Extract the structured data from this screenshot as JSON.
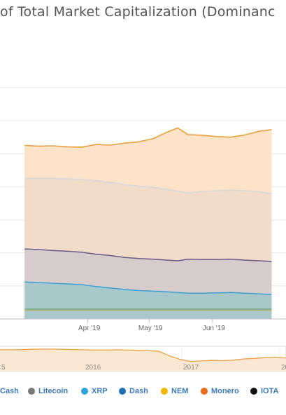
{
  "chart_data": {
    "type": "area",
    "stacked": true,
    "title": "of Total Market Capitalization (Dominanc",
    "x_axis": {
      "tick_labels": [
        "Apr '19",
        "May '19",
        "Jun '19"
      ],
      "tick_dates": [
        "2019-04-01",
        "2019-05-01",
        "2019-06-01"
      ]
    },
    "x": [
      "2019-03-01",
      "2019-03-08",
      "2019-03-15",
      "2019-03-22",
      "2019-03-29",
      "2019-04-05",
      "2019-04-12",
      "2019-04-19",
      "2019-04-26",
      "2019-05-03",
      "2019-05-10",
      "2019-05-15",
      "2019-05-20",
      "2019-05-27",
      "2019-06-03",
      "2019-06-10",
      "2019-06-17",
      "2019-06-24",
      "2019-06-30"
    ],
    "series": [
      {
        "name": "Litecoin",
        "color": "#777777",
        "values": [
          0.6,
          0.6,
          0.6,
          0.6,
          0.6,
          0.6,
          0.6,
          0.6,
          0.6,
          0.6,
          0.6,
          0.6,
          0.6,
          0.6,
          0.6,
          0.6,
          0.6,
          0.6,
          0.6
        ]
      },
      {
        "name": "XRP",
        "color": "#2fa3d5",
        "values": [
          0.8,
          0.8,
          0.8,
          0.8,
          0.8,
          0.8,
          0.8,
          0.8,
          0.8,
          0.8,
          0.8,
          0.8,
          0.8,
          0.8,
          0.8,
          0.8,
          0.8,
          0.8,
          0.8
        ]
      },
      {
        "name": "Dash",
        "color": "#1f6fb2",
        "values": [
          0.5,
          0.5,
          0.5,
          0.5,
          0.5,
          0.5,
          0.5,
          0.5,
          0.5,
          0.5,
          0.5,
          0.5,
          0.5,
          0.5,
          0.5,
          0.5,
          0.5,
          0.5,
          0.5
        ]
      },
      {
        "name": "NEM",
        "color": "#f5b800",
        "values": [
          0.2,
          0.2,
          0.2,
          0.2,
          0.2,
          0.2,
          0.2,
          0.2,
          0.2,
          0.2,
          0.2,
          0.2,
          0.2,
          0.2,
          0.2,
          0.2,
          0.2,
          0.2,
          0.2
        ]
      },
      {
        "name": "Monero",
        "color": "#f06a1b",
        "values": [
          0.3,
          0.3,
          0.3,
          0.3,
          0.3,
          0.3,
          0.3,
          0.3,
          0.3,
          0.3,
          0.3,
          0.3,
          0.3,
          0.3,
          0.3,
          0.3,
          0.3,
          0.3,
          0.3
        ]
      },
      {
        "name": "IOTA",
        "color": "#111111",
        "values": [
          0.2,
          0.2,
          0.2,
          0.2,
          0.2,
          0.2,
          0.2,
          0.2,
          0.2,
          0.2,
          0.2,
          0.2,
          0.2,
          0.2,
          0.2,
          0.2,
          0.2,
          0.2,
          0.2
        ]
      }
    ],
    "top_band_values": [
      52.5,
      52.3,
      52.4,
      52.1,
      52.0,
      52.8,
      52.6,
      53.2,
      53.6,
      54.6,
      56.6,
      57.8,
      55.8,
      55.6,
      55.2,
      55.0,
      55.7,
      56.8,
      57.3
    ],
    "gray_band_values": [
      21.3,
      21.5,
      21.8,
      21.9,
      22.0,
      22.2,
      22.1,
      22.0,
      21.9,
      21.7,
      21.4,
      21.0,
      20.0,
      20.6,
      20.8,
      20.9,
      21.0,
      20.9,
      20.5
    ],
    "purple_band_values": [
      10.0,
      10.0,
      9.9,
      9.9,
      9.8,
      9.8,
      9.8,
      9.7,
      9.7,
      9.7,
      9.6,
      9.6,
      10.3,
      10.2,
      10.1,
      10.1,
      10.0,
      10.0,
      10.0
    ],
    "teal_band_values": [
      8.6,
      8.4,
      8.2,
      8.0,
      7.8,
      7.2,
      6.8,
      6.3,
      6.0,
      5.8,
      5.6,
      5.4,
      5.2,
      5.2,
      5.3,
      5.4,
      5.2,
      5.0,
      4.8
    ],
    "ylim": [
      0,
      70
    ],
    "navigator": {
      "tick_labels": [
        "5",
        "2016",
        "2017",
        "20"
      ],
      "values": [
        86,
        86,
        87,
        88,
        89,
        89,
        88,
        87,
        86,
        85,
        85,
        86,
        85,
        84,
        83,
        80,
        62,
        48,
        40,
        42,
        44,
        43,
        45,
        50,
        52,
        55,
        57,
        54
      ]
    },
    "legend_labels": [
      "Cash",
      "Litecoin",
      "XRP",
      "Dash",
      "NEM",
      "Monero",
      "IOTA"
    ],
    "legend_position": "bottom",
    "grid": true
  }
}
